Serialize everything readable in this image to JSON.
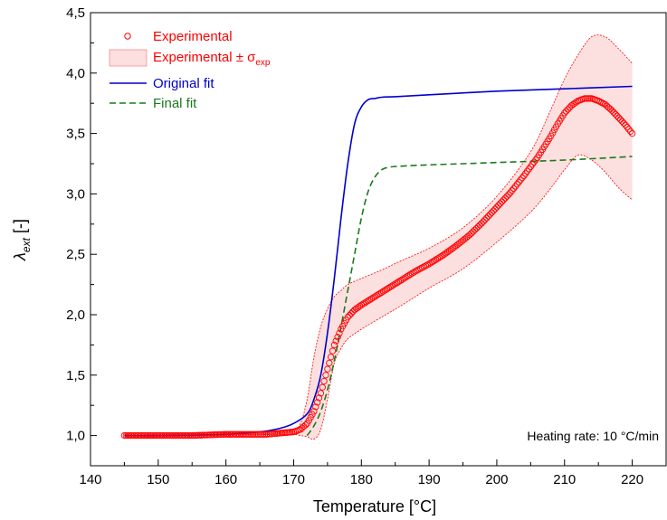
{
  "chart_data": {
    "type": "line",
    "title": "",
    "xlabel": "Temperature [°C]",
    "ylabel": {
      "base": "λ",
      "sub": "ext",
      "suffix": " [-]"
    },
    "xlim": [
      140,
      225
    ],
    "ylim": [
      0.75,
      4.5
    ],
    "x_ticks": [
      "140",
      "150",
      "160",
      "170",
      "180",
      "190",
      "200",
      "210",
      "220"
    ],
    "y_ticks": [
      "1,0",
      "1,5",
      "2,0",
      "2,5",
      "3,0",
      "3,5",
      "4,0",
      "4,5"
    ],
    "grid": false,
    "legend_position": "top-left",
    "annotation": "Heating rate: 10 °C/min",
    "series": [
      {
        "name": "Experimental",
        "kind": "scatter-open-circle",
        "color": "#ff0000",
        "x": [
          145,
          150,
          155,
          160,
          163,
          166,
          168,
          170,
          171,
          172,
          173,
          174,
          175,
          176,
          177,
          178,
          179,
          180,
          182,
          184,
          186,
          188,
          190,
          192,
          194,
          196,
          198,
          200,
          202,
          204,
          206,
          208,
          209,
          210,
          211,
          212,
          213,
          214,
          215,
          216,
          217,
          218,
          219,
          220
        ],
        "y": [
          1.0,
          1.0,
          1.0,
          1.01,
          1.01,
          1.01,
          1.02,
          1.03,
          1.05,
          1.1,
          1.2,
          1.35,
          1.55,
          1.75,
          1.88,
          1.98,
          2.04,
          2.08,
          2.15,
          2.22,
          2.29,
          2.36,
          2.42,
          2.49,
          2.57,
          2.66,
          2.77,
          2.89,
          3.01,
          3.15,
          3.3,
          3.48,
          3.58,
          3.67,
          3.73,
          3.77,
          3.79,
          3.79,
          3.77,
          3.74,
          3.69,
          3.63,
          3.57,
          3.5
        ]
      },
      {
        "name": "Experimental ± σ",
        "name_sub": "exp",
        "kind": "band",
        "color": "#ff0000",
        "fill": "#fce0e0",
        "x": [
          145,
          150,
          160,
          168,
          170,
          171,
          172,
          173,
          174,
          175,
          176,
          177,
          178,
          180,
          183,
          186,
          190,
          195,
          200,
          205,
          208,
          210,
          212,
          214,
          216,
          218,
          220
        ],
        "upper": [
          1.01,
          1.01,
          1.02,
          1.03,
          1.05,
          1.1,
          1.3,
          1.65,
          1.9,
          2.05,
          2.15,
          2.2,
          2.25,
          2.3,
          2.37,
          2.45,
          2.55,
          2.72,
          2.98,
          3.35,
          3.7,
          3.95,
          4.15,
          4.3,
          4.3,
          4.2,
          4.08
        ],
        "lower": [
          0.99,
          0.99,
          1.0,
          1.01,
          1.01,
          1.0,
          0.99,
          0.97,
          1.05,
          1.3,
          1.6,
          1.72,
          1.8,
          1.88,
          1.98,
          2.08,
          2.22,
          2.38,
          2.6,
          2.85,
          3.05,
          3.2,
          3.32,
          3.28,
          3.18,
          3.05,
          2.95
        ]
      },
      {
        "name": "Original fit",
        "kind": "line-solid",
        "color": "#0000cc",
        "x": [
          145,
          150,
          160,
          165,
          168,
          170,
          172,
          173,
          174,
          175,
          176,
          177,
          178,
          179,
          180,
          181,
          182,
          183,
          185,
          190,
          200,
          210,
          220
        ],
        "y": [
          1.0,
          1.0,
          1.01,
          1.03,
          1.06,
          1.1,
          1.18,
          1.3,
          1.5,
          1.85,
          2.3,
          2.8,
          3.25,
          3.58,
          3.72,
          3.78,
          3.79,
          3.8,
          3.805,
          3.82,
          3.85,
          3.87,
          3.89
        ]
      },
      {
        "name": "Final fit",
        "kind": "line-dashed",
        "color": "#1a7a1a",
        "x": [
          172,
          173,
          174,
          175,
          176,
          177,
          178,
          179,
          180,
          181,
          182,
          183,
          184,
          186,
          190,
          200,
          210,
          220
        ],
        "y": [
          1.0,
          1.08,
          1.2,
          1.38,
          1.62,
          1.9,
          2.2,
          2.5,
          2.8,
          3.02,
          3.14,
          3.2,
          3.22,
          3.23,
          3.24,
          3.26,
          3.28,
          3.31
        ]
      }
    ]
  }
}
